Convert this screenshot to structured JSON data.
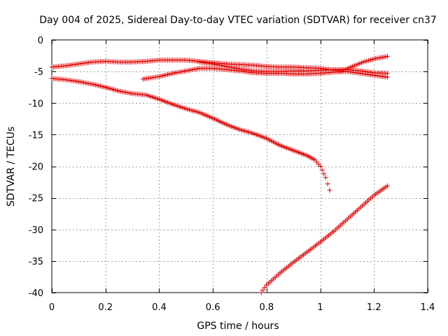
{
  "chart_data": {
    "type": "scatter",
    "title": "Day 004 of 2025, Sidereal Day-to-day VTEC variation (SDTVAR) for receiver cn37",
    "xlabel": "GPS time / hours",
    "ylabel": "SDTVAR / TECUs",
    "xlim": [
      0,
      1.4
    ],
    "ylim": [
      -40,
      0
    ],
    "xticks": [
      0,
      0.2,
      0.4,
      0.6,
      0.8,
      1,
      1.2,
      1.4
    ],
    "xtick_labels": [
      "0",
      "0.2",
      "0.4",
      "0.6",
      "0.8",
      "1",
      "1.2",
      "1.4"
    ],
    "yticks": [
      0,
      -5,
      -10,
      -15,
      -20,
      -25,
      -30,
      -35,
      -40
    ],
    "ytick_labels": [
      "0",
      "-5",
      "-10",
      "-15",
      "-20",
      "-25",
      "-30",
      "-35",
      "-40"
    ],
    "grid": true,
    "marker": "plus",
    "color": "#e00000",
    "series": [
      {
        "name": "track-1",
        "points": [
          [
            0.0,
            -4.3
          ],
          [
            0.05,
            -4.1
          ],
          [
            0.1,
            -3.8
          ],
          [
            0.15,
            -3.5
          ],
          [
            0.2,
            -3.4
          ],
          [
            0.25,
            -3.5
          ],
          [
            0.3,
            -3.5
          ],
          [
            0.35,
            -3.4
          ],
          [
            0.4,
            -3.2
          ],
          [
            0.45,
            -3.2
          ],
          [
            0.5,
            -3.2
          ],
          [
            0.55,
            -3.4
          ],
          [
            0.6,
            -3.6
          ],
          [
            0.65,
            -3.8
          ],
          [
            0.7,
            -3.9
          ],
          [
            0.75,
            -4.0
          ],
          [
            0.8,
            -4.2
          ],
          [
            0.85,
            -4.3
          ],
          [
            0.9,
            -4.3
          ],
          [
            0.95,
            -4.4
          ],
          [
            1.0,
            -4.5
          ],
          [
            1.05,
            -4.8
          ],
          [
            1.08,
            -4.9
          ],
          [
            1.12,
            -4.2
          ],
          [
            1.16,
            -3.5
          ],
          [
            1.2,
            -3.0
          ],
          [
            1.25,
            -2.6
          ]
        ]
      },
      {
        "name": "track-2",
        "points": [
          [
            0.34,
            -6.2
          ],
          [
            0.4,
            -5.8
          ],
          [
            0.45,
            -5.3
          ],
          [
            0.5,
            -4.9
          ],
          [
            0.55,
            -4.5
          ],
          [
            0.6,
            -4.5
          ],
          [
            0.65,
            -4.7
          ],
          [
            0.7,
            -4.9
          ],
          [
            0.75,
            -5.2
          ],
          [
            0.8,
            -5.3
          ],
          [
            0.85,
            -5.3
          ],
          [
            0.9,
            -5.4
          ],
          [
            0.95,
            -5.4
          ],
          [
            1.0,
            -5.3
          ],
          [
            1.05,
            -5.1
          ],
          [
            1.1,
            -5.0
          ],
          [
            1.15,
            -5.3
          ],
          [
            1.2,
            -5.6
          ],
          [
            1.25,
            -5.9
          ]
        ]
      },
      {
        "name": "track-3",
        "points": [
          [
            0.55,
            -3.5
          ],
          [
            0.6,
            -3.8
          ],
          [
            0.65,
            -4.2
          ],
          [
            0.7,
            -4.6
          ],
          [
            0.75,
            -4.9
          ],
          [
            0.8,
            -5.0
          ],
          [
            0.85,
            -5.0
          ],
          [
            0.9,
            -4.9
          ],
          [
            0.95,
            -4.9
          ],
          [
            1.0,
            -4.8
          ],
          [
            1.05,
            -4.7
          ],
          [
            1.1,
            -4.7
          ],
          [
            1.15,
            -4.9
          ],
          [
            1.2,
            -5.2
          ],
          [
            1.25,
            -5.3
          ]
        ]
      },
      {
        "name": "track-4",
        "points": [
          [
            0.0,
            -6.1
          ],
          [
            0.05,
            -6.3
          ],
          [
            0.1,
            -6.6
          ],
          [
            0.15,
            -7.0
          ],
          [
            0.2,
            -7.5
          ],
          [
            0.25,
            -8.1
          ],
          [
            0.3,
            -8.5
          ],
          [
            0.35,
            -8.7
          ],
          [
            0.4,
            -9.4
          ],
          [
            0.45,
            -10.2
          ],
          [
            0.5,
            -10.9
          ],
          [
            0.55,
            -11.5
          ],
          [
            0.6,
            -12.4
          ],
          [
            0.65,
            -13.4
          ],
          [
            0.7,
            -14.2
          ],
          [
            0.75,
            -14.8
          ],
          [
            0.8,
            -15.6
          ],
          [
            0.85,
            -16.7
          ],
          [
            0.9,
            -17.5
          ],
          [
            0.95,
            -18.3
          ],
          [
            0.98,
            -19.0
          ],
          [
            1.0,
            -20.0
          ],
          [
            1.02,
            -21.8
          ],
          [
            1.035,
            -23.8
          ]
        ]
      },
      {
        "name": "track-5",
        "points": [
          [
            0.78,
            -40.0
          ],
          [
            0.8,
            -38.8
          ],
          [
            0.85,
            -36.9
          ],
          [
            0.9,
            -35.2
          ],
          [
            0.95,
            -33.6
          ],
          [
            1.0,
            -32.0
          ],
          [
            1.05,
            -30.3
          ],
          [
            1.1,
            -28.4
          ],
          [
            1.15,
            -26.5
          ],
          [
            1.2,
            -24.6
          ],
          [
            1.25,
            -23.1
          ]
        ]
      }
    ]
  }
}
